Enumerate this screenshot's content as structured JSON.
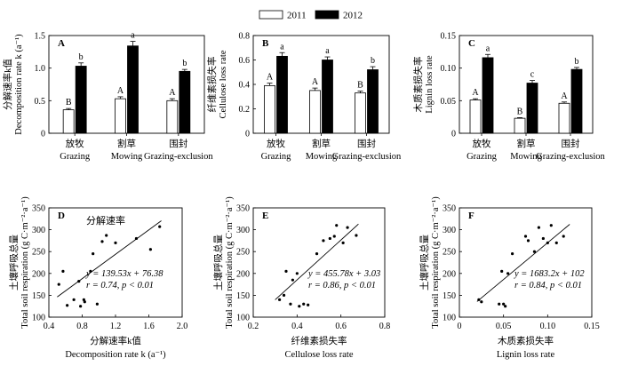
{
  "legend": {
    "series": [
      "2011",
      "2012"
    ],
    "colors": [
      "#ffffff",
      "#000000"
    ]
  },
  "chart_data": [
    {
      "type": "bar",
      "panel": "A",
      "categories": [
        "放牧",
        "割草",
        "围封"
      ],
      "categories_en": [
        "Grazing",
        "Mowing",
        "Grazing-exclusion"
      ],
      "ylabel_cn": "分解速率k值",
      "ylabel_en": "Decomposition rate k (a⁻¹)",
      "ylim": [
        0,
        1.5
      ],
      "yticks": [
        0,
        0.5,
        1.0,
        1.5
      ],
      "ytick_labels": [
        "0",
        "0.5",
        "1.0",
        "1.5"
      ],
      "series": [
        {
          "name": "2011",
          "values": [
            0.36,
            0.53,
            0.5
          ],
          "errors": [
            0.02,
            0.03,
            0.03
          ],
          "letters": [
            "B",
            "A",
            "A"
          ]
        },
        {
          "name": "2012",
          "values": [
            1.03,
            1.34,
            0.95
          ],
          "errors": [
            0.05,
            0.07,
            0.03
          ],
          "letters": [
            "b",
            "a",
            "b"
          ]
        }
      ]
    },
    {
      "type": "bar",
      "panel": "B",
      "categories": [
        "放牧",
        "割草",
        "围封"
      ],
      "categories_en": [
        "Grazing",
        "Mowing",
        "Grazing-exclusion"
      ],
      "ylabel_cn": "纤维素损失率",
      "ylabel_en": "Cellulose loss rate",
      "ylim": [
        0,
        0.8
      ],
      "yticks": [
        0,
        0.2,
        0.4,
        0.6,
        0.8
      ],
      "ytick_labels": [
        "0",
        "0.2",
        "0.4",
        "0.6",
        "0.8"
      ],
      "series": [
        {
          "name": "2011",
          "values": [
            0.39,
            0.35,
            0.33
          ],
          "errors": [
            0.02,
            0.02,
            0.015
          ],
          "letters": [
            "A",
            "A",
            "B"
          ]
        },
        {
          "name": "2012",
          "values": [
            0.63,
            0.6,
            0.52
          ],
          "errors": [
            0.03,
            0.025,
            0.025
          ],
          "letters": [
            "a",
            "a",
            "b"
          ]
        }
      ]
    },
    {
      "type": "bar",
      "panel": "C",
      "categories": [
        "放牧",
        "割草",
        "围封"
      ],
      "categories_en": [
        "Grazing",
        "Mowing",
        "Grazing-exclusion"
      ],
      "ylabel_cn": "木质素损失率",
      "ylabel_en": "Lignin loss rate",
      "ylim": [
        0,
        0.15
      ],
      "yticks": [
        0,
        0.05,
        0.1,
        0.15
      ],
      "ytick_labels": [
        "0",
        "0.05",
        "0.10",
        "0.15"
      ],
      "series": [
        {
          "name": "2011",
          "values": [
            0.051,
            0.023,
            0.046
          ],
          "errors": [
            0.002,
            0.001,
            0.002
          ],
          "letters": [
            "A",
            "B",
            "A"
          ]
        },
        {
          "name": "2012",
          "values": [
            0.116,
            0.077,
            0.098
          ],
          "errors": [
            0.005,
            0.004,
            0.003
          ],
          "letters": [
            "a",
            "c",
            "b"
          ]
        }
      ]
    },
    {
      "type": "scatter",
      "panel": "D",
      "annotation": "分解速率",
      "xlabel_cn": "分解速率k值",
      "xlabel_en": "Decomposition rate k (a⁻¹)",
      "ylabel_cn": "土壤呼吸总量",
      "ylabel_en": "Total soil respiration (g C·m⁻²·a⁻¹)",
      "xlim": [
        0.4,
        2.0
      ],
      "xticks": [
        0.4,
        0.8,
        1.2,
        1.6,
        2.0
      ],
      "xtick_labels": [
        "0.4",
        "0.8",
        "1.2",
        "1.6",
        "2.0"
      ],
      "ylim": [
        100,
        350
      ],
      "yticks": [
        100,
        150,
        200,
        250,
        300,
        350
      ],
      "ytick_labels": [
        "100",
        "150",
        "200",
        "250",
        "300",
        "350"
      ],
      "x": [
        0.52,
        0.57,
        0.62,
        0.7,
        0.76,
        0.78,
        0.82,
        0.83,
        0.9,
        0.93,
        0.98,
        1.04,
        1.09,
        1.2,
        1.45,
        1.62,
        1.73
      ],
      "y": [
        175,
        205,
        127,
        140,
        182,
        125,
        140,
        135,
        205,
        245,
        130,
        273,
        287,
        270,
        280,
        255,
        307
      ],
      "fit": {
        "slope": 139.53,
        "intercept": 76.38,
        "x_range": [
          0.5,
          1.75
        ]
      },
      "equation": "y = 139.53x + 76.38",
      "stats": "r = 0.74,  p < 0.01"
    },
    {
      "type": "scatter",
      "panel": "E",
      "xlabel_cn": "纤维素损失率",
      "xlabel_en": "Cellulose loss rate",
      "ylabel_cn": "土壤呼吸总量",
      "ylabel_en": "Total soil respiration (g C·m⁻²·a⁻¹)",
      "xlim": [
        0.2,
        0.8
      ],
      "xticks": [
        0.2,
        0.4,
        0.6,
        0.8
      ],
      "xtick_labels": [
        "0.2",
        "0.4",
        "0.6",
        "0.8"
      ],
      "ylim": [
        100,
        350
      ],
      "yticks": [
        100,
        150,
        200,
        250,
        300,
        350
      ],
      "ytick_labels": [
        "100",
        "150",
        "200",
        "250",
        "300",
        "350"
      ],
      "x": [
        0.32,
        0.34,
        0.35,
        0.37,
        0.38,
        0.4,
        0.41,
        0.43,
        0.45,
        0.49,
        0.52,
        0.55,
        0.57,
        0.58,
        0.61,
        0.63,
        0.67
      ],
      "y": [
        140,
        150,
        205,
        130,
        185,
        200,
        125,
        130,
        128,
        245,
        275,
        280,
        285,
        310,
        270,
        305,
        287
      ],
      "fit": {
        "slope": 455.78,
        "intercept": 3.03,
        "x_range": [
          0.3,
          0.68
        ]
      },
      "equation": "y = 455.78x + 3.03",
      "stats": "r = 0.86,  p < 0.01"
    },
    {
      "type": "scatter",
      "panel": "F",
      "xlabel_cn": "木质素损失率",
      "xlabel_en": "Lignin loss rate",
      "ylabel_cn": "土壤呼吸总量",
      "ylabel_en": "Total soil respiration (g C·m⁻²·a⁻¹)",
      "xlim": [
        0,
        0.15
      ],
      "xticks": [
        0,
        0.05,
        0.1,
        0.15
      ],
      "xtick_labels": [
        "0",
        "0.05",
        "0.10",
        "0.15"
      ],
      "ylim": [
        100,
        350
      ],
      "yticks": [
        100,
        150,
        200,
        250,
        300,
        350
      ],
      "ytick_labels": [
        "100",
        "150",
        "200",
        "250",
        "300",
        "350"
      ],
      "x": [
        0.022,
        0.025,
        0.045,
        0.048,
        0.05,
        0.052,
        0.055,
        0.06,
        0.075,
        0.078,
        0.085,
        0.09,
        0.095,
        0.1,
        0.104,
        0.11,
        0.118
      ],
      "y": [
        140,
        135,
        130,
        205,
        130,
        125,
        200,
        245,
        285,
        275,
        250,
        305,
        280,
        270,
        310,
        270,
        285
      ],
      "fit": {
        "slope": 1683.2,
        "intercept": 102,
        "x_range": [
          0.02,
          0.125
        ]
      },
      "equation": "y = 1683.2x + 102",
      "stats": "r = 0.84,  p < 0.01"
    }
  ]
}
